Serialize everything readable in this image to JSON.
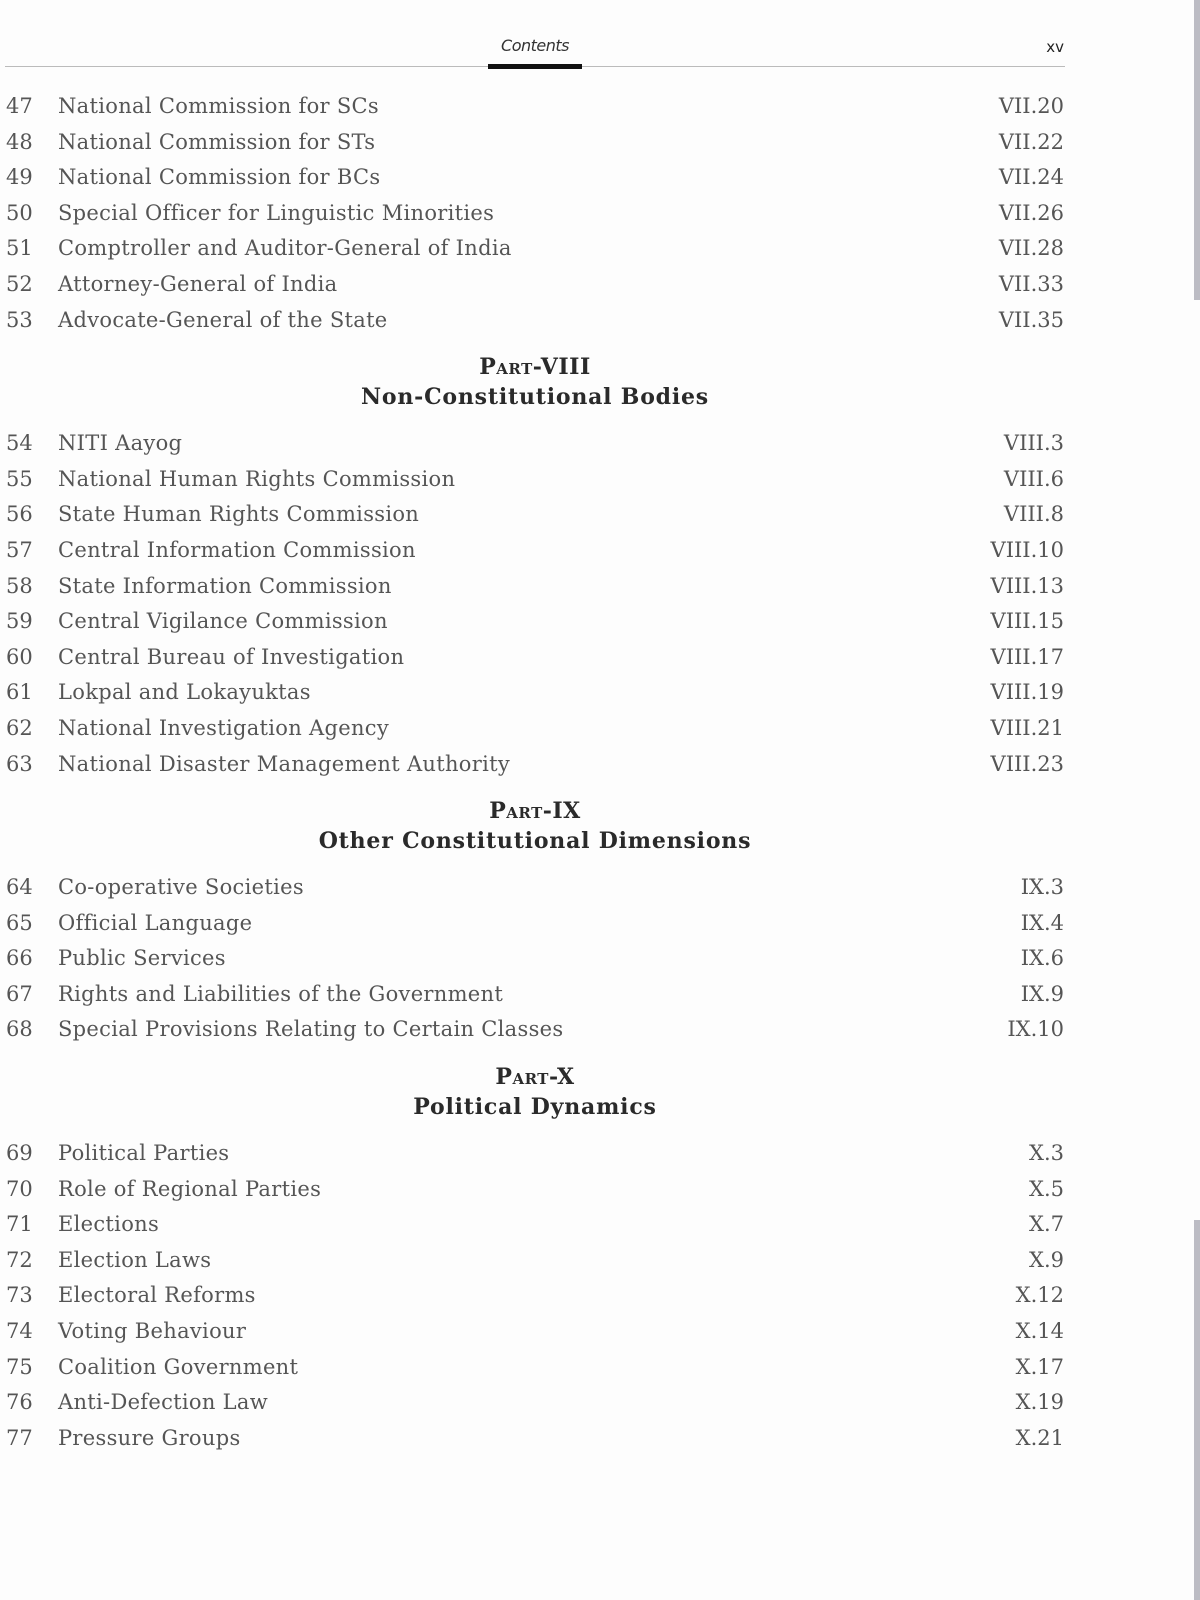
{
  "header": {
    "title": "Contents",
    "page": "xv"
  },
  "sections": [
    {
      "part": null,
      "rows": [
        {
          "n": "47",
          "t": "National Commission for SCs",
          "p": "VII.20"
        },
        {
          "n": "48",
          "t": "National Commission for STs",
          "p": "VII.22"
        },
        {
          "n": "49",
          "t": "National Commission for BCs",
          "p": "VII.24"
        },
        {
          "n": "50",
          "t": "Special Officer for Linguistic Minorities",
          "p": "VII.26"
        },
        {
          "n": "51",
          "t": "Comptroller and Auditor-General of India",
          "p": "VII.28"
        },
        {
          "n": "52",
          "t": "Attorney-General of India",
          "p": "VII.33"
        },
        {
          "n": "53",
          "t": "Advocate-General of the State",
          "p": "VII.35"
        }
      ]
    },
    {
      "part": "Part-VIII",
      "subtitle": "Non-Constitutional Bodies",
      "rows": [
        {
          "n": "54",
          "t": "NITI Aayog",
          "p": "VIII.3"
        },
        {
          "n": "55",
          "t": "National Human Rights Commission",
          "p": "VIII.6"
        },
        {
          "n": "56",
          "t": "State Human Rights Commission",
          "p": "VIII.8"
        },
        {
          "n": "57",
          "t": "Central Information Commission",
          "p": "VIII.10"
        },
        {
          "n": "58",
          "t": "State Information Commission",
          "p": "VIII.13"
        },
        {
          "n": "59",
          "t": "Central Vigilance Commission",
          "p": "VIII.15"
        },
        {
          "n": "60",
          "t": "Central Bureau of Investigation",
          "p": "VIII.17"
        },
        {
          "n": "61",
          "t": "Lokpal and Lokayuktas",
          "p": "VIII.19"
        },
        {
          "n": "62",
          "t": "National Investigation Agency",
          "p": "VIII.21"
        },
        {
          "n": "63",
          "t": "National Disaster Management Authority",
          "p": "VIII.23"
        }
      ]
    },
    {
      "part": "Part-IX",
      "subtitle": "Other Constitutional Dimensions",
      "rows": [
        {
          "n": "64",
          "t": "Co-operative Societies",
          "p": "IX.3"
        },
        {
          "n": "65",
          "t": "Official Language",
          "p": "IX.4"
        },
        {
          "n": "66",
          "t": "Public Services",
          "p": "IX.6"
        },
        {
          "n": "67",
          "t": "Rights and Liabilities of the Government",
          "p": "IX.9"
        },
        {
          "n": "68",
          "t": "Special Provisions Relating to Certain Classes",
          "p": "IX.10"
        }
      ]
    },
    {
      "part": "Part-X",
      "subtitle": "Political Dynamics",
      "rows": [
        {
          "n": "69",
          "t": "Political Parties",
          "p": "X.3"
        },
        {
          "n": "70",
          "t": "Role of Regional Parties",
          "p": "X.5"
        },
        {
          "n": "71",
          "t": "Elections",
          "p": "X.7"
        },
        {
          "n": "72",
          "t": "Election Laws",
          "p": "X.9"
        },
        {
          "n": "73",
          "t": "Electoral Reforms",
          "p": "X.12"
        },
        {
          "n": "74",
          "t": "Voting Behaviour",
          "p": "X.14"
        },
        {
          "n": "75",
          "t": "Coalition Government",
          "p": "X.17"
        },
        {
          "n": "76",
          "t": "Anti-Defection Law",
          "p": "X.19"
        },
        {
          "n": "77",
          "t": "Pressure Groups",
          "p": "X.21"
        }
      ]
    }
  ]
}
